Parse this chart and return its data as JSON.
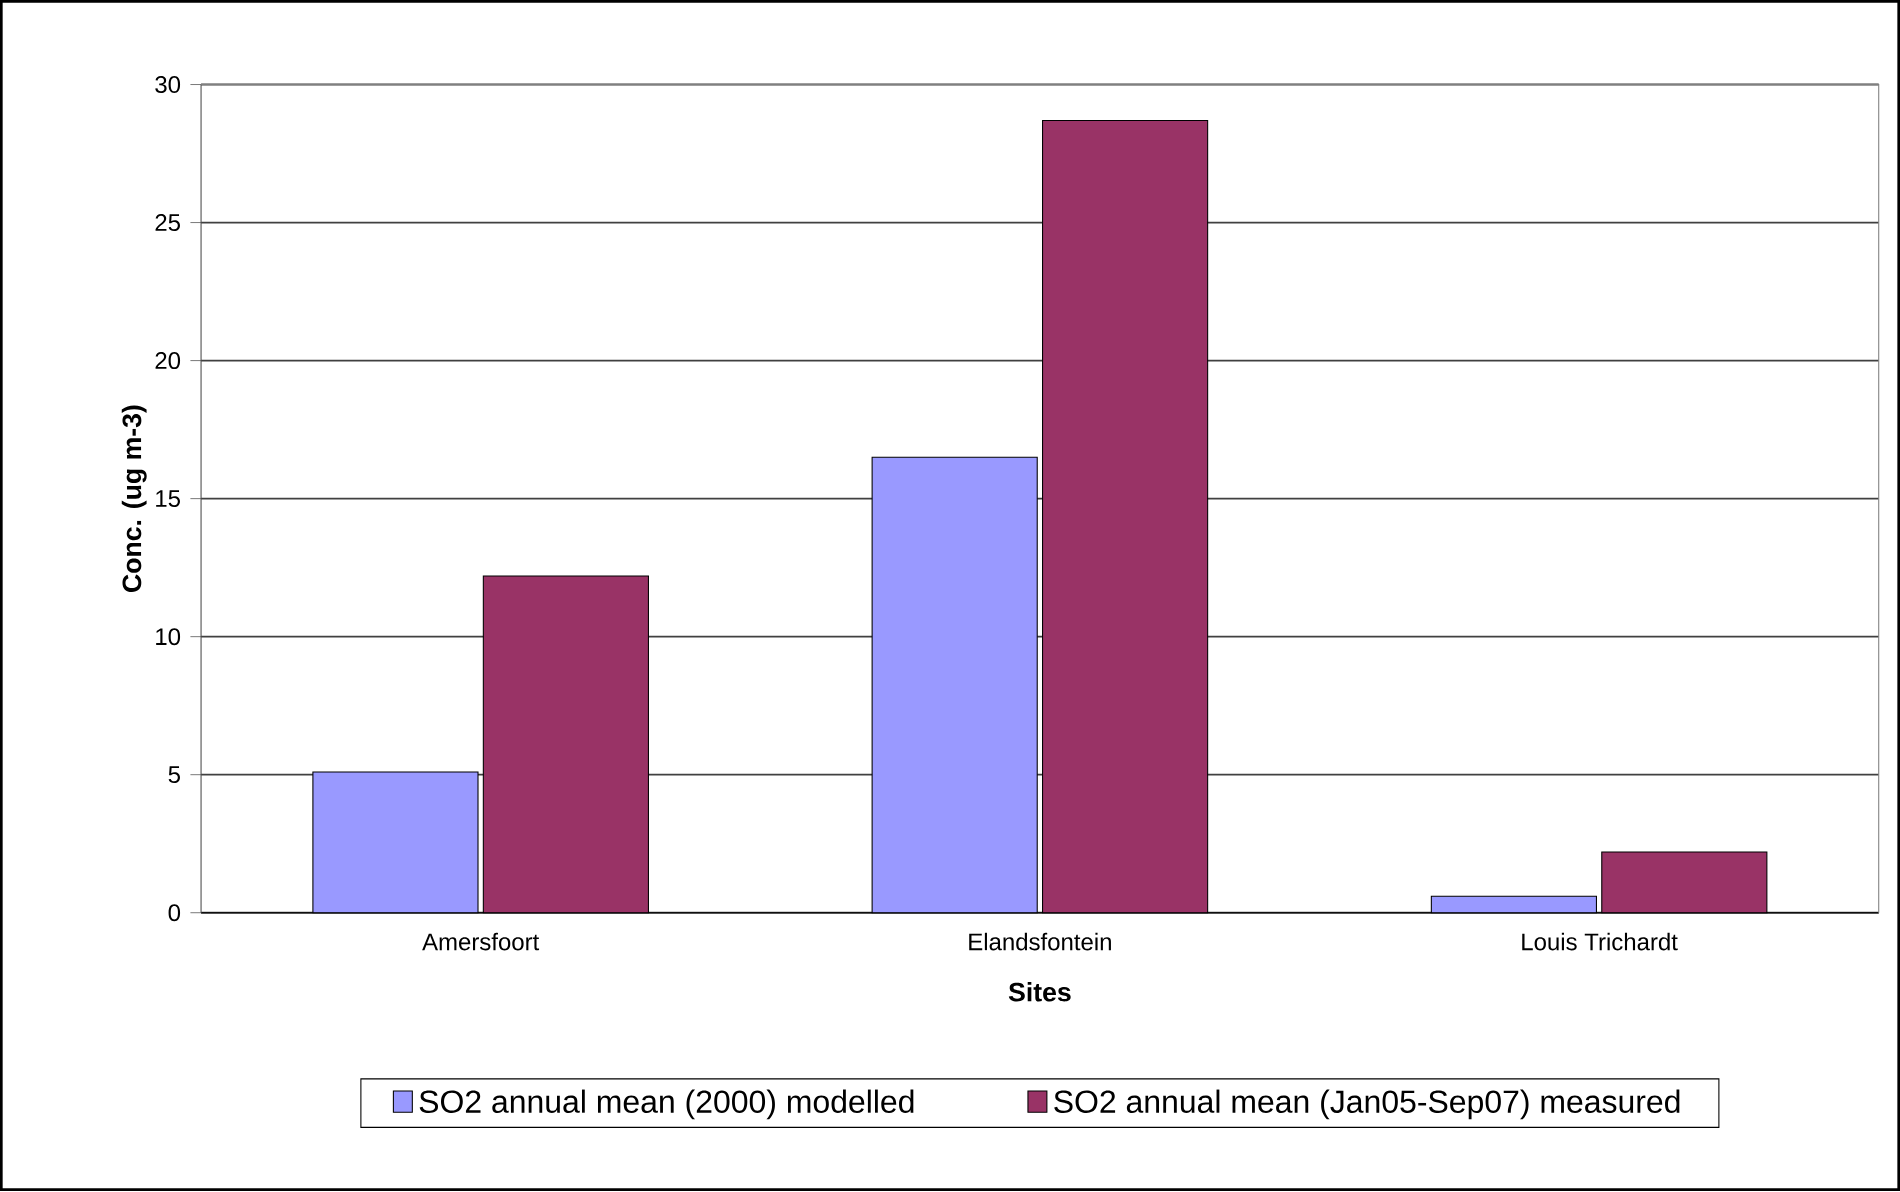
{
  "chart_data": {
    "type": "bar",
    "xlabel": "Sites",
    "ylabel": "Conc. (ug m-3)",
    "categories": [
      "Amersfoort",
      "Elandsfontein",
      "Louis Trichardt"
    ],
    "series": [
      {
        "name": "SO2 annual mean (2000) modelled",
        "color": "#9999ff",
        "values": [
          5.1,
          16.5,
          0.6
        ]
      },
      {
        "name": "SO2 annual mean (Jan05-Sep07) measured",
        "color": "#993366",
        "values": [
          12.2,
          28.7,
          2.2
        ]
      }
    ],
    "ylim": [
      0,
      30
    ],
    "yticks": [
      0,
      5,
      10,
      15,
      20,
      25,
      30
    ],
    "grid": "y",
    "legend": "bottom"
  }
}
